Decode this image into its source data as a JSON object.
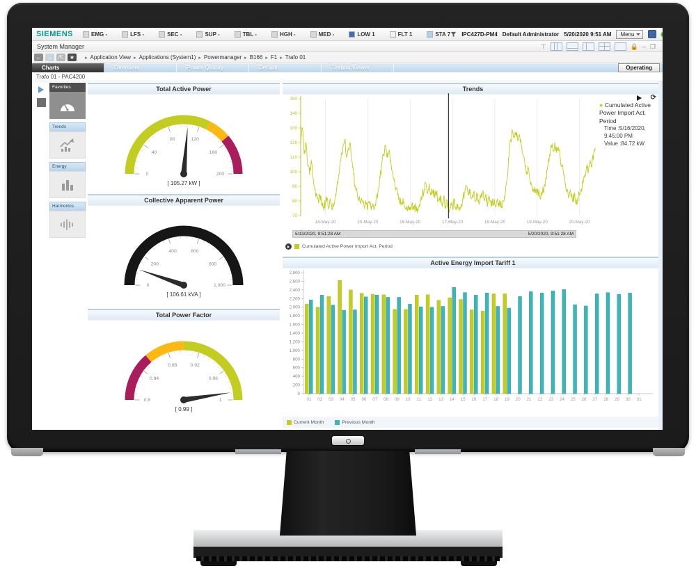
{
  "menu_bar": {
    "brand": "SIEMENS",
    "items": [
      {
        "label": "EMG -",
        "color": "#d8d8d8"
      },
      {
        "label": "LFS -",
        "color": "#d8d8d8"
      },
      {
        "label": "SEC -",
        "color": "#d8d8d8"
      },
      {
        "label": "SUP -",
        "color": "#d8d8d8"
      },
      {
        "label": "TBL -",
        "color": "#d8d8d8"
      },
      {
        "label": "HGH -",
        "color": "#d8d8d8"
      },
      {
        "label": "MED -",
        "color": "#d8d8d8"
      },
      {
        "label": "LOW 1",
        "color": "#3f6fb5"
      },
      {
        "label": "FLT 1",
        "color": "#f2f2f2"
      },
      {
        "label": "STA 7",
        "color": "#aed2ee"
      }
    ],
    "right": {
      "device": "IPC427D-PM4",
      "user": "Default Administrator",
      "datetime": "5/20/2020 9:51 AM",
      "menu_label": "Menu"
    }
  },
  "title_bar": {
    "title": "System Manager"
  },
  "breadcrumb": {
    "items": [
      "Application View",
      "Applications (System1)",
      "Powermanager",
      "B166",
      "F1",
      "Trafo 01"
    ]
  },
  "tabs": {
    "items": [
      "Charts",
      "Overview",
      "Power Quality",
      "Default",
      "Textual Viewer"
    ],
    "active": "Charts",
    "operating_label": "Operating"
  },
  "device_bar": {
    "label": "Trafo 01 - PAC4200"
  },
  "sidebar": {
    "items": [
      {
        "label": "Favorites",
        "icon": "gauge-icon",
        "active": true
      },
      {
        "label": "Trends",
        "icon": "trend-line-icon",
        "active": false
      },
      {
        "label": "Energy",
        "icon": "bar-chart-icon",
        "active": false
      },
      {
        "label": "Harmonics",
        "icon": "harmonics-wave-icon",
        "active": false
      }
    ]
  },
  "colors": {
    "lime": "#c3cd21",
    "orange": "#fdb913",
    "crimson": "#aa1d5d",
    "teal": "#3cb4b8",
    "black": "#161616",
    "axis_lime": "#b9c41c"
  },
  "chart_data": [
    {
      "type": "gauge",
      "title": "Total Active Power",
      "unit": "kW",
      "min": 0,
      "max": 200,
      "value": 105.27,
      "display": "[ 105.27 kW ]",
      "tick_labels": [
        "0",
        "40",
        "80",
        "120",
        "160",
        "200"
      ],
      "segments": [
        {
          "from": 0,
          "to": 130,
          "color": "#c3cd21"
        },
        {
          "from": 130,
          "to": 155,
          "color": "#fdb913"
        },
        {
          "from": 155,
          "to": 200,
          "color": "#aa1d5d"
        }
      ]
    },
    {
      "type": "gauge",
      "title": "Collective Apparent Power",
      "unit": "kVA",
      "min": 0,
      "max": 1000,
      "value": 106.61,
      "display": "[ 106.61 kVA ]",
      "tick_labels": [
        "0",
        "200",
        "400",
        "600",
        "800",
        "1,000"
      ],
      "segments": [
        {
          "from": 0,
          "to": 1000,
          "color": "#161616"
        }
      ]
    },
    {
      "type": "gauge",
      "title": "Total Power Factor",
      "unit": "",
      "min": 0.8,
      "max": 1,
      "value": 0.99,
      "display": "[ 0.99 ]",
      "tick_labels": [
        "0.8",
        "0.84",
        "0.88",
        "0.92",
        "0.96",
        "1"
      ],
      "segments": [
        {
          "from": 0.8,
          "to": 0.855,
          "color": "#aa1d5d"
        },
        {
          "from": 0.855,
          "to": 0.9,
          "color": "#fdb913"
        },
        {
          "from": 0.9,
          "to": 1,
          "color": "#c3cd21"
        }
      ]
    },
    {
      "type": "line",
      "title": "Trends",
      "ylim": [
        70,
        150
      ],
      "y_ticks": [
        70,
        80,
        90,
        100,
        110,
        120,
        130,
        140,
        150
      ],
      "x_tick_labels": [
        "14-May-20",
        "15-May-20",
        "16-May-20",
        "17-May-20",
        "18-May-20",
        "19-May-20",
        "20-May-20"
      ],
      "hours_before_first_tick": 14,
      "hours_total": 168,
      "series": [
        {
          "name": "Cumulated Active Power Import Act. Period",
          "color": "#c3cd21",
          "hourly_values": [
            118,
            130,
            112,
            120,
            104,
            98,
            108,
            96,
            88,
            84,
            80,
            84,
            78,
            76,
            78,
            82,
            76,
            80,
            75,
            78,
            84,
            92,
            102,
            112,
            118,
            122,
            110,
            116,
            120,
            108,
            98,
            90,
            86,
            82,
            78,
            80,
            76,
            78,
            76,
            80,
            74,
            78,
            76,
            82,
            88,
            96,
            106,
            112,
            118,
            110,
            114,
            108,
            100,
            94,
            88,
            84,
            80,
            78,
            82,
            76,
            74,
            76,
            74,
            78,
            74,
            76,
            72,
            76,
            80,
            84,
            88,
            92,
            86,
            90,
            84,
            88,
            82,
            86,
            80,
            84,
            78,
            82,
            76,
            80,
            74,
            78,
            76,
            80,
            74,
            78,
            74,
            78,
            82,
            86,
            90,
            84,
            88,
            82,
            86,
            80,
            84,
            78,
            82,
            86,
            80,
            84,
            78,
            82,
            76,
            80,
            78,
            80,
            76,
            78,
            76,
            80,
            86,
            96,
            110,
            122,
            128,
            124,
            127,
            121,
            125,
            118,
            112,
            106,
            98,
            102,
            94,
            90,
            86,
            88,
            84,
            88,
            82,
            86,
            90,
            96,
            104,
            112,
            118,
            114,
            120,
            113,
            117,
            110,
            104,
            98,
            92,
            88,
            84,
            86,
            80,
            84,
            78,
            82,
            84,
            88,
            92,
            98,
            104,
            100,
            108,
            104,
            112,
            115
          ]
        }
      ],
      "cursor_hour": 83.75,
      "tooltip": {
        "name": "Cumulated Active Power Import Act. Period",
        "time": "Time :5/16/2020, 9:45:00 PM",
        "value": "Value :84.72 kW"
      },
      "range_bar": {
        "start": "5/13/2020, 9:51:28 AM",
        "end": "5/20/2020, 9:51:28 AM"
      },
      "legend_label": "Cumulated Active Power Import Act. Period"
    },
    {
      "type": "bar",
      "title": "Active Energy Import Tariff 1",
      "ylim": [
        0,
        2800
      ],
      "y_tick_step": 200,
      "categories": [
        "01",
        "02",
        "03",
        "04",
        "05",
        "06",
        "07",
        "08",
        "09",
        "10",
        "11",
        "12",
        "13",
        "14",
        "15",
        "16",
        "17",
        "18",
        "19",
        "20",
        "21",
        "22",
        "23",
        "24",
        "25",
        "26",
        "27",
        "28",
        "29",
        "30",
        "31"
      ],
      "series": [
        {
          "name": "Current Month",
          "color": "#c3cd21",
          "values": [
            2070,
            2000,
            2250,
            2620,
            2400,
            2320,
            2300,
            2290,
            1950,
            1950,
            2280,
            2290,
            2160,
            2220,
            2180,
            1940,
            1910,
            2310,
            2310
          ]
        },
        {
          "name": "Previous Month",
          "color": "#3cb4b8",
          "values": [
            2170,
            2280,
            2050,
            1930,
            1940,
            2240,
            2280,
            2230,
            2230,
            2070,
            2010,
            2000,
            2020,
            2460,
            2340,
            2280,
            2330,
            2020,
            1980,
            2250,
            2360,
            2330,
            2380,
            2410,
            2060,
            2030,
            2310,
            2340,
            2300,
            2330
          ]
        }
      ]
    }
  ]
}
